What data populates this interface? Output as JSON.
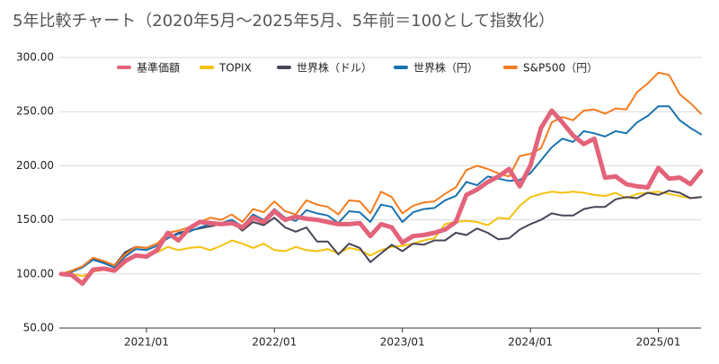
{
  "chart_data": {
    "type": "line",
    "title": "5年比較チャート（2020年5月〜2025年5月、5年前＝100として指数化）",
    "categories": [
      null,
      null,
      null,
      null,
      null,
      null,
      null,
      null,
      "2021/01",
      null,
      null,
      null,
      null,
      null,
      null,
      null,
      null,
      null,
      null,
      null,
      "2022/01",
      null,
      null,
      null,
      null,
      null,
      null,
      null,
      null,
      null,
      null,
      null,
      "2023/01",
      null,
      null,
      null,
      null,
      null,
      null,
      null,
      null,
      null,
      null,
      null,
      "2024/01",
      null,
      null,
      null,
      null,
      null,
      null,
      null,
      null,
      null,
      null,
      null,
      "2025/01",
      null,
      null,
      null,
      null
    ],
    "ylim": [
      50,
      300
    ],
    "yticks": [
      {
        "value": 50,
        "label": "50.00"
      },
      {
        "value": 100,
        "label": "100.00"
      },
      {
        "value": 150,
        "label": "150.00"
      },
      {
        "value": 200,
        "label": "200.00"
      },
      {
        "value": 250,
        "label": "250.00"
      },
      {
        "value": 300,
        "label": "300.00"
      }
    ],
    "grid": true,
    "legend": "top",
    "series": [
      {
        "name": "基準価額",
        "color": "#e3637a",
        "values": [
          100,
          99,
          91,
          104,
          105,
          103,
          112,
          117,
          116,
          122,
          138,
          131,
          142,
          148,
          147,
          146,
          147,
          143,
          152,
          148,
          158,
          150,
          153,
          151,
          150,
          148,
          146,
          146,
          147,
          135,
          146,
          143,
          129,
          135,
          136,
          138,
          141,
          148,
          173,
          178,
          185,
          190,
          197,
          181,
          200,
          235,
          251,
          240,
          228,
          220,
          225,
          189,
          190,
          183,
          181,
          180,
          198,
          188,
          189,
          183,
          195
        ]
      },
      {
        "name": "TOPIX",
        "color": "#f4c20d",
        "values": [
          100,
          100,
          98,
          102,
          104,
          102,
          110,
          118,
          117,
          120,
          125,
          122,
          124,
          125,
          122,
          126,
          131,
          128,
          124,
          128,
          122,
          121,
          125,
          122,
          121,
          123,
          119,
          124,
          122,
          117,
          122,
          125,
          126,
          128,
          131,
          133,
          146,
          148,
          149,
          148,
          145,
          152,
          151,
          163,
          171,
          174,
          176,
          175,
          176,
          175,
          173,
          172,
          175,
          170,
          174,
          175,
          176,
          174,
          172,
          170,
          171
        ]
      },
      {
        "name": "世界株（ドル）",
        "color": "#4a4458",
        "values": [
          100,
          103,
          107,
          114,
          111,
          108,
          120,
          125,
          124,
          128,
          133,
          138,
          140,
          142,
          144,
          146,
          148,
          140,
          148,
          145,
          152,
          143,
          139,
          143,
          130,
          130,
          118,
          128,
          124,
          111,
          119,
          127,
          121,
          128,
          127,
          131,
          131,
          138,
          136,
          142,
          138,
          132,
          133,
          141,
          146,
          150,
          156,
          154,
          154,
          160,
          162,
          162,
          169,
          171,
          170,
          175,
          173,
          177,
          175,
          170,
          171
        ]
      },
      {
        "name": "世界株（円）",
        "color": "#1a73b0",
        "values": [
          100,
          102,
          106,
          113,
          110,
          106,
          116,
          123,
          122,
          126,
          133,
          137,
          139,
          143,
          146,
          147,
          150,
          144,
          155,
          150,
          160,
          152,
          149,
          159,
          156,
          154,
          147,
          158,
          157,
          148,
          164,
          162,
          148,
          157,
          160,
          161,
          168,
          172,
          185,
          182,
          190,
          188,
          186,
          187,
          193,
          205,
          217,
          225,
          222,
          232,
          230,
          227,
          232,
          230,
          240,
          246,
          255,
          255,
          242,
          235,
          229
        ]
      },
      {
        "name": "S&P500（円）",
        "color": "#f57c1f",
        "values": [
          100,
          103,
          107,
          115,
          112,
          108,
          118,
          125,
          124,
          128,
          138,
          140,
          143,
          148,
          152,
          150,
          155,
          148,
          160,
          157,
          167,
          158,
          155,
          168,
          164,
          162,
          155,
          168,
          167,
          156,
          176,
          171,
          156,
          163,
          166,
          167,
          174,
          180,
          196,
          200,
          197,
          193,
          190,
          209,
          211,
          216,
          240,
          245,
          242,
          251,
          252,
          248,
          253,
          252,
          268,
          276,
          286,
          284,
          266,
          258,
          248
        ]
      }
    ]
  }
}
